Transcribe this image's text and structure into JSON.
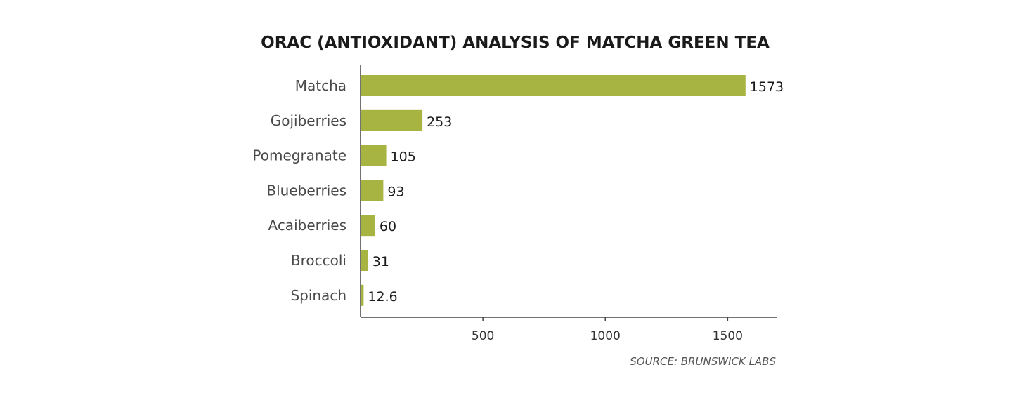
{
  "chart_data": {
    "type": "bar",
    "orientation": "horizontal",
    "title": "ORAC (ANTIOXIDANT) ANALYSIS OF MATCHA GREEN TEA",
    "categories": [
      "Matcha",
      "Gojiberries",
      "Pomegranate",
      "Blueberries",
      "Acaiberries",
      "Broccoli",
      "Spinach"
    ],
    "values": [
      1573,
      253,
      105,
      93,
      60,
      31,
      12.6
    ],
    "value_labels": [
      "1573",
      "253",
      "105",
      "93",
      "60",
      "31",
      "12.6"
    ],
    "xticks": [
      500,
      1000,
      1500
    ],
    "xlim": [
      0,
      1700
    ],
    "xlabel": "",
    "ylabel": "",
    "grid": false,
    "bar_color": "#a8b441",
    "source": "SOURCE: BRUNSWICK LABS"
  }
}
